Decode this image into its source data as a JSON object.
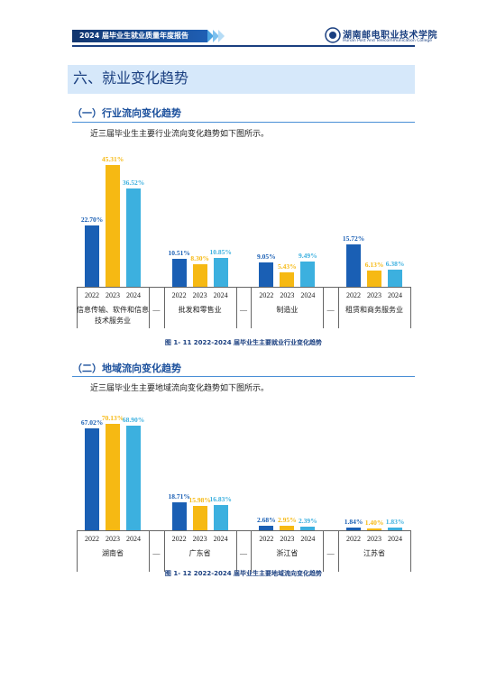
{
  "header": {
    "title": "2024 届毕业生就业质量年度报告",
    "school": "湖南邮电职业技术学院",
    "school_en": "Hunan Post And Telecommunication College"
  },
  "section_title": "六、就业变化趋势",
  "blocks": [
    {
      "heading": "（一）行业流向变化趋势",
      "text": "近三届毕业生主要行业流向变化趋势如下图所示。",
      "chart": {
        "type": "bar",
        "categories": [
          "信息传输、软件和信息技术服务业",
          "批发和零售业",
          "制造业",
          "租赁和商务服务业"
        ],
        "separator": "—",
        "series": [
          {
            "name": "2022",
            "color": "#1a5fb4",
            "values": [
              22.7,
              10.51,
              9.05,
              15.72
            ],
            "value_labels": [
              "22.70%",
              "10.51%",
              "9.05%",
              "15.72%"
            ]
          },
          {
            "name": "2023",
            "color": "#f6b913",
            "values": [
              45.31,
              8.3,
              5.43,
              6.13
            ],
            "value_labels": [
              "45.31%",
              "8.30%",
              "5.43%",
              "6.13%"
            ]
          },
          {
            "name": "2024",
            "color": "#3cb0df",
            "values": [
              36.52,
              10.85,
              9.49,
              6.38
            ],
            "value_labels": [
              "36.52%",
              "10.85%",
              "9.49%",
              "6.38%"
            ]
          }
        ]
      },
      "caption": "图 1- 11  2022-2024 届毕业生主要就业行业变化趋势"
    },
    {
      "heading": "（二）地域流向变化趋势",
      "text": "近三届毕业生主要地域流向变化趋势如下图所示。",
      "chart": {
        "type": "bar",
        "categories": [
          "湖南省",
          "广东省",
          "浙江省",
          "江苏省"
        ],
        "separator": "—",
        "series": [
          {
            "name": "2022",
            "color": "#1a5fb4",
            "values": [
              67.02,
              18.71,
              2.68,
              1.84
            ],
            "value_labels": [
              "67.02%",
              "18.71%",
              "2.68%",
              "1.84%"
            ]
          },
          {
            "name": "2023",
            "color": "#f6b913",
            "values": [
              70.13,
              15.98,
              2.95,
              1.4
            ],
            "value_labels": [
              "70.13%",
              "15.98%",
              "2.95%",
              "1.40%"
            ]
          },
          {
            "name": "2024",
            "color": "#3cb0df",
            "values": [
              68.9,
              16.83,
              2.39,
              1.83
            ],
            "value_labels": [
              "68.90%",
              "16.83%",
              "2.39%",
              "1.83%"
            ]
          }
        ]
      },
      "caption": "图 1- 12  2022-2024 届毕业生主要地域流向变化趋势"
    }
  ]
}
